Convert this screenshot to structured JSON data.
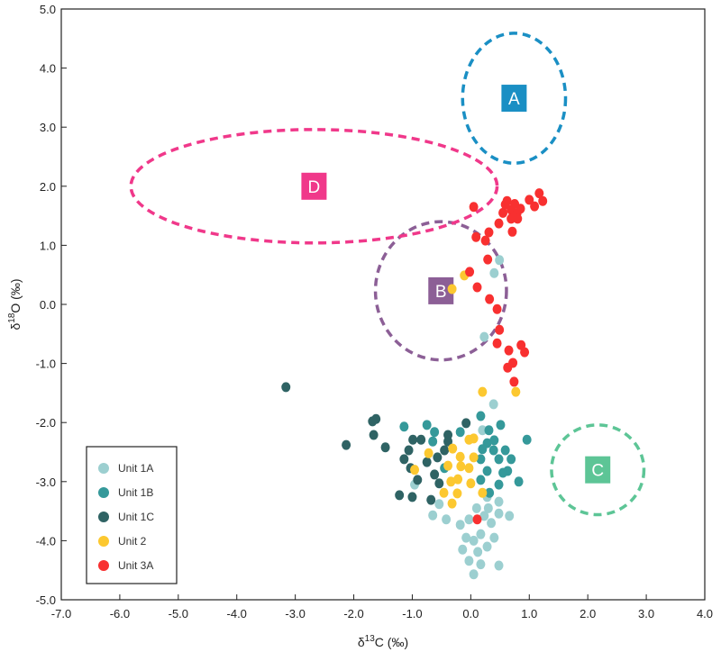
{
  "chart_data": {
    "type": "scatter",
    "title": "",
    "xlabel": {
      "prefix": "δ",
      "sup": "13",
      "suffix": "C (‰)"
    },
    "ylabel": {
      "prefix": "δ",
      "sup": "18",
      "suffix": "O (‰)"
    },
    "xlim": [
      -7,
      4
    ],
    "ylim": [
      -5,
      5
    ],
    "xticks": [
      "-7.0",
      "-6.0",
      "-5.0",
      "-4.0",
      "-3.0",
      "-2.0",
      "-1.0",
      "0.0",
      "1.0",
      "2.0",
      "3.0",
      "4.0"
    ],
    "yticks": [
      "5.0",
      "4.0",
      "3.0",
      "2.0",
      "1.0",
      "0.0",
      "-1.0",
      "-2.0",
      "-3.0",
      "-4.0",
      "-5.0"
    ],
    "grid": false,
    "legend_position": "bottom-left",
    "series": [
      {
        "name": "Unit 1A",
        "color": "#9ccfd0",
        "points": [
          [
            0.49,
            0.75
          ],
          [
            0.4,
            0.53
          ],
          [
            0.23,
            -0.55
          ],
          [
            0.39,
            -1.69
          ],
          [
            0.2,
            -2.13
          ],
          [
            -0.65,
            -3.57
          ],
          [
            -0.42,
            -3.64
          ],
          [
            -0.18,
            -3.73
          ],
          [
            -0.03,
            -3.64
          ],
          [
            0.23,
            -3.58
          ],
          [
            0.48,
            -3.54
          ],
          [
            0.66,
            -3.58
          ],
          [
            0.48,
            -3.34
          ],
          [
            -0.08,
            -3.95
          ],
          [
            0.17,
            -3.89
          ],
          [
            0.4,
            -3.95
          ],
          [
            -0.14,
            -4.15
          ],
          [
            0.12,
            -4.19
          ],
          [
            -0.03,
            -4.34
          ],
          [
            0.48,
            -4.42
          ],
          [
            0.05,
            -4.57
          ],
          [
            0.28,
            -4.1
          ],
          [
            0.17,
            -4.4
          ],
          [
            -0.96,
            -3.05
          ],
          [
            -0.54,
            -3.38
          ],
          [
            0.28,
            -3.26
          ],
          [
            0.1,
            -3.45
          ],
          [
            0.35,
            -3.7
          ],
          [
            0.05,
            -4.0
          ],
          [
            0.3,
            -3.45
          ]
        ]
      },
      {
        "name": "Unit 1B",
        "color": "#35999a",
        "points": [
          [
            -1.14,
            -2.07
          ],
          [
            -0.75,
            -2.04
          ],
          [
            -0.62,
            -2.16
          ],
          [
            0.17,
            -1.89
          ],
          [
            0.51,
            -2.04
          ],
          [
            0.31,
            -2.13
          ],
          [
            0.96,
            -2.29
          ],
          [
            -0.18,
            -2.16
          ],
          [
            0.28,
            -2.35
          ],
          [
            0.39,
            -2.47
          ],
          [
            0.17,
            -2.62
          ],
          [
            0.48,
            -2.62
          ],
          [
            0.69,
            -2.62
          ],
          [
            0.28,
            -2.82
          ],
          [
            0.63,
            -2.82
          ],
          [
            0.82,
            -3.0
          ],
          [
            0.48,
            -3.05
          ],
          [
            0.17,
            -2.97
          ],
          [
            0.32,
            -3.19
          ],
          [
            -0.65,
            -2.32
          ],
          [
            -0.45,
            -2.77
          ],
          [
            0.59,
            -2.47
          ],
          [
            0.4,
            -2.3
          ],
          [
            0.55,
            -2.85
          ],
          [
            0.2,
            -2.45
          ]
        ]
      },
      {
        "name": "Unit 1C",
        "color": "#2f6364",
        "points": [
          [
            -3.16,
            -1.4
          ],
          [
            -1.62,
            -1.94
          ],
          [
            -1.68,
            -1.98
          ],
          [
            -1.66,
            -2.21
          ],
          [
            -2.13,
            -2.38
          ],
          [
            -1.46,
            -2.42
          ],
          [
            -0.08,
            -2.01
          ],
          [
            -0.99,
            -2.29
          ],
          [
            -0.85,
            -2.29
          ],
          [
            -0.39,
            -2.21
          ],
          [
            -1.06,
            -2.47
          ],
          [
            -1.14,
            -2.62
          ],
          [
            -0.75,
            -2.67
          ],
          [
            -0.57,
            -2.59
          ],
          [
            -0.45,
            -2.47
          ],
          [
            -1.03,
            -2.77
          ],
          [
            -0.62,
            -2.88
          ],
          [
            -0.91,
            -2.97
          ],
          [
            -0.54,
            -3.03
          ],
          [
            -1.22,
            -3.23
          ],
          [
            -1.0,
            -3.26
          ],
          [
            -0.68,
            -3.31
          ],
          [
            -0.39,
            -2.32
          ]
        ]
      },
      {
        "name": "Unit 2",
        "color": "#fcc830",
        "points": [
          [
            -0.11,
            0.49
          ],
          [
            -0.32,
            0.26
          ],
          [
            0.2,
            -1.48
          ],
          [
            0.77,
            -1.48
          ],
          [
            -0.72,
            -2.52
          ],
          [
            -0.96,
            -2.8
          ],
          [
            -0.39,
            -2.73
          ],
          [
            -0.31,
            -2.44
          ],
          [
            -0.18,
            -2.58
          ],
          [
            -0.17,
            -2.74
          ],
          [
            -0.03,
            -2.29
          ],
          [
            0.05,
            -2.27
          ],
          [
            0.05,
            -2.59
          ],
          [
            -0.03,
            -2.77
          ],
          [
            -0.34,
            -3.0
          ],
          [
            -0.22,
            -2.96
          ],
          [
            0.0,
            -3.03
          ],
          [
            -0.46,
            -3.19
          ],
          [
            -0.23,
            -3.2
          ],
          [
            0.2,
            -3.19
          ],
          [
            -0.32,
            -3.37
          ]
        ]
      },
      {
        "name": "Unit 3A",
        "color": "#f83030",
        "points": [
          [
            0.05,
            1.65
          ],
          [
            0.59,
            1.69
          ],
          [
            0.69,
            1.6
          ],
          [
            0.79,
            1.54
          ],
          [
            0.69,
            1.45
          ],
          [
            1.0,
            1.77
          ],
          [
            1.17,
            1.88
          ],
          [
            1.23,
            1.75
          ],
          [
            1.09,
            1.66
          ],
          [
            0.48,
            1.37
          ],
          [
            0.71,
            1.23
          ],
          [
            0.31,
            1.22
          ],
          [
            0.09,
            1.14
          ],
          [
            0.25,
            1.08
          ],
          [
            0.29,
            0.76
          ],
          [
            -0.02,
            0.55
          ],
          [
            0.11,
            0.29
          ],
          [
            0.32,
            0.09
          ],
          [
            0.45,
            -0.08
          ],
          [
            0.49,
            -0.43
          ],
          [
            0.45,
            -0.66
          ],
          [
            0.65,
            -0.78
          ],
          [
            0.86,
            -0.69
          ],
          [
            0.92,
            -0.81
          ],
          [
            0.72,
            -0.99
          ],
          [
            0.63,
            -1.07
          ],
          [
            0.74,
            -1.31
          ],
          [
            0.11,
            -3.64
          ],
          [
            0.55,
            1.55
          ],
          [
            0.75,
            1.7
          ],
          [
            0.85,
            1.62
          ],
          [
            0.62,
            1.75
          ],
          [
            0.8,
            1.45
          ]
        ]
      }
    ],
    "annotations": [
      {
        "label": "A",
        "color": "#1a8fc4",
        "center": [
          0.74,
          3.49
        ],
        "radii": [
          0.88,
          1.1
        ]
      },
      {
        "label": "B",
        "color": "#8c5f96",
        "center": [
          -0.51,
          0.23
        ],
        "radii": [
          1.12,
          1.17
        ]
      },
      {
        "label": "C",
        "color": "#5dc596",
        "center": [
          2.17,
          -2.8
        ],
        "radii": [
          0.79,
          0.76
        ]
      },
      {
        "label": "D",
        "color": "#f0388a",
        "center": [
          -2.68,
          2.0
        ],
        "radii": [
          3.13,
          0.96
        ]
      }
    ]
  }
}
